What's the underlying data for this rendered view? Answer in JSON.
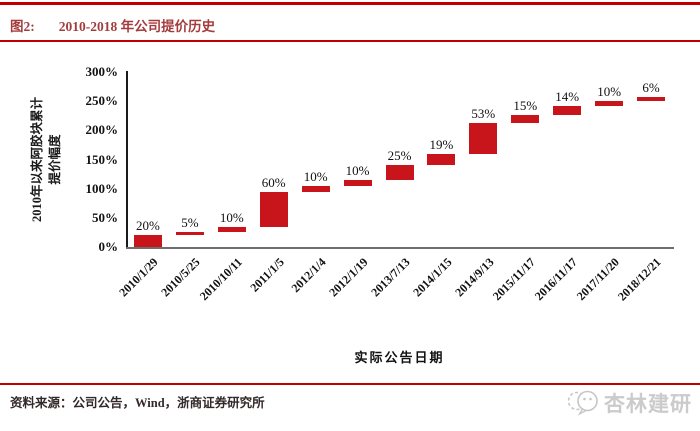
{
  "header": {
    "figure_label": "图2:",
    "title": "2010-2018 年公司提价历史"
  },
  "chart_data": {
    "type": "bar",
    "subtype": "waterfall",
    "title": "2010-2018 年公司提价历史",
    "xlabel": "实际公告日期",
    "ylabel": "2010年以来阿胶块累计提价幅度",
    "ylabel_line1": "2010年以来阿胶块累计",
    "ylabel_line2": "提价幅度",
    "categories": [
      "2010/1/29",
      "2010/5/25",
      "2010/10/11",
      "2011/1/5",
      "2012/1/4",
      "2012/1/19",
      "2013/7/13",
      "2014/1/15",
      "2014/9/13",
      "2015/11/17",
      "2016/11/17",
      "2017/11/20",
      "2018/12/21"
    ],
    "values": [
      20,
      5,
      10,
      60,
      10,
      10,
      25,
      19,
      53,
      15,
      14,
      10,
      6
    ],
    "labels": [
      "20%",
      "5%",
      "10%",
      "60%",
      "10%",
      "10%",
      "25%",
      "19%",
      "53%",
      "15%",
      "14%",
      "10%",
      "6%"
    ],
    "cumulative_start": [
      0,
      20,
      25,
      35,
      95,
      105,
      115,
      140,
      159,
      212,
      227,
      241,
      251
    ],
    "cumulative_end": [
      20,
      25,
      35,
      95,
      105,
      115,
      140,
      159,
      212,
      227,
      241,
      251,
      257
    ],
    "ylim": [
      0,
      300
    ],
    "yticks": [
      "300%",
      "250%",
      "200%",
      "150%",
      "100%",
      "50%",
      "0%"
    ],
    "grid": false,
    "legend_position": "none",
    "bar_color": "#C7151B"
  },
  "footer": {
    "source_label": "资料来源：",
    "source_text": "公司公告，Wind，浙商证券研究所",
    "logo_text": "杏林建研"
  },
  "colors": {
    "rule_red": "#C00000",
    "title_red": "#A43C3C",
    "bar_red": "#C7151B",
    "y_axis_black": "#1a1a1a",
    "x_axis_gray": "#6e6e6e",
    "logo_gray": "#cbcbcb"
  }
}
